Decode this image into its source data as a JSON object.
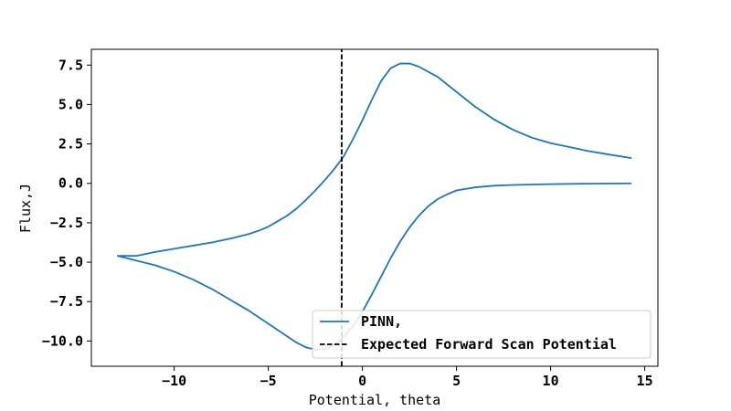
{
  "chart_data": {
    "type": "line",
    "title": "",
    "xlabel": "Potential, theta",
    "ylabel": "Flux,J",
    "xlim": [
      -14.4,
      15.7
    ],
    "ylim": [
      -11.6,
      8.5
    ],
    "xticks": [
      -10,
      -5,
      0,
      5,
      10,
      15
    ],
    "xtick_labels": [
      "−10",
      "−5",
      "0",
      "5",
      "10",
      "15"
    ],
    "yticks": [
      7.5,
      5.0,
      2.5,
      0.0,
      -2.5,
      -5.0,
      -7.5,
      -10.0
    ],
    "ytick_labels": [
      "7.5",
      "5.0",
      "2.5",
      "0.0",
      "−2.5",
      "−5.0",
      "−7.5",
      "−10.0"
    ],
    "grid": false,
    "legend_position": "lower-right",
    "series": [
      {
        "name": "PINN,",
        "color": "#1f77b4",
        "style": "solid",
        "x": [
          14.3,
          13,
          12,
          11,
          10,
          9,
          8,
          7,
          6,
          5,
          4,
          3,
          2.5,
          2,
          1.5,
          1,
          0.5,
          0,
          -0.5,
          -1,
          -1.5,
          -2,
          -2.5,
          -3,
          -3.5,
          -4,
          -4.5,
          -5,
          -5.5,
          -6,
          -6.5,
          -7,
          -8,
          -9,
          -10,
          -11,
          -12,
          -13,
          -12,
          -11,
          -10,
          -9,
          -8,
          -7,
          -6,
          -5,
          -4,
          -3.5,
          -3,
          -2.5,
          -2,
          -1.5,
          -1,
          -0.5,
          0,
          0.5,
          1,
          1.5,
          2,
          2.5,
          3,
          3.5,
          4,
          4.5,
          5,
          6,
          7,
          8,
          10,
          12,
          14.3
        ],
        "y": [
          1.6,
          1.85,
          2.05,
          2.3,
          2.55,
          2.9,
          3.4,
          4.05,
          4.85,
          5.8,
          6.75,
          7.4,
          7.6,
          7.6,
          7.3,
          6.5,
          5.3,
          4.0,
          2.8,
          1.7,
          0.9,
          0.2,
          -0.45,
          -1.05,
          -1.6,
          -2.05,
          -2.4,
          -2.75,
          -3.0,
          -3.2,
          -3.35,
          -3.5,
          -3.75,
          -3.95,
          -4.15,
          -4.35,
          -4.6,
          -4.6,
          -4.9,
          -5.2,
          -5.6,
          -6.1,
          -6.7,
          -7.4,
          -8.1,
          -8.9,
          -9.7,
          -10.1,
          -10.4,
          -10.55,
          -10.5,
          -10.25,
          -9.75,
          -9.05,
          -8.15,
          -7.05,
          -5.9,
          -4.75,
          -3.7,
          -2.8,
          -2.05,
          -1.45,
          -1.0,
          -0.7,
          -0.45,
          -0.25,
          -0.15,
          -0.1,
          -0.05,
          -0.02,
          0.0
        ]
      },
      {
        "name": "Expected Forward Scan Potential",
        "color": "#000000",
        "style": "dashed",
        "x": [
          -1.1,
          -1.1
        ],
        "y": [
          -11.6,
          8.5
        ]
      }
    ]
  }
}
